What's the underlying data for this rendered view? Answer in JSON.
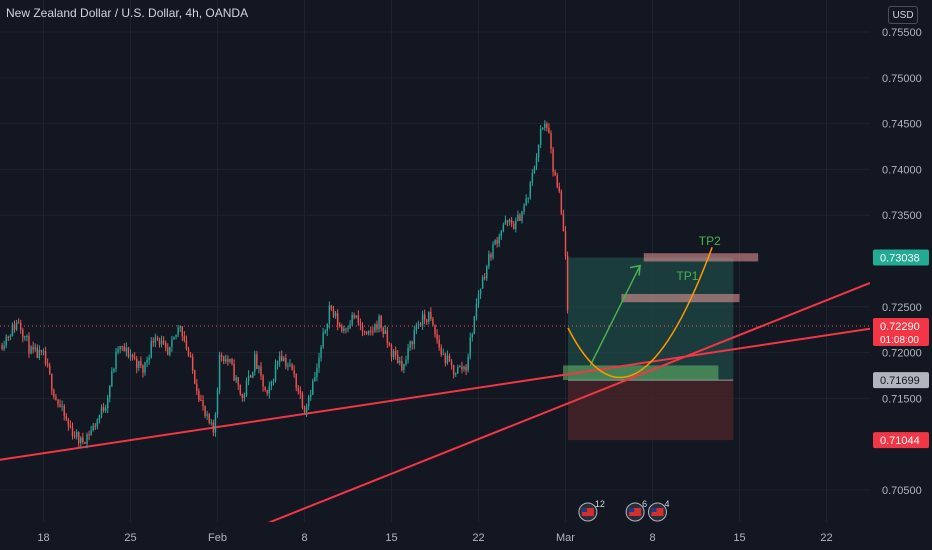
{
  "header": {
    "title": "New Zealand Dollar / U.S. Dollar, 4h, OANDA",
    "currency_button": "USD"
  },
  "chart_data": {
    "type": "candlestick",
    "title": "New Zealand Dollar / U.S. Dollar, 4h, OANDA",
    "price_axis": {
      "ticks": [
        "0.75500",
        "0.75000",
        "0.74500",
        "0.74000",
        "0.73500",
        "0.72500",
        "0.72000",
        "0.71500",
        "0.70500"
      ],
      "tick_values": [
        0.755,
        0.75,
        0.745,
        0.74,
        0.735,
        0.725,
        0.72,
        0.715,
        0.705
      ],
      "ylim": [
        0.7015,
        0.7585
      ]
    },
    "time_axis": {
      "ticks": [
        "18",
        "25",
        "Feb",
        "8",
        "15",
        "22",
        "Mar",
        "8",
        "15",
        "22"
      ],
      "tick_days": [
        0,
        7,
        14,
        21,
        28,
        35,
        42,
        49,
        56,
        63
      ],
      "xlim_days": [
        -3.5,
        66.5
      ]
    },
    "price_labels": [
      {
        "value": 0.73038,
        "text": "0.73038",
        "color": "#22ab94"
      },
      {
        "value": 0.7229,
        "text": "0.72290",
        "sub": "01:08:00",
        "color": "#f23645"
      },
      {
        "value": 0.71699,
        "text": "0.71699",
        "color": "#b2b5be"
      },
      {
        "value": 0.71044,
        "text": "0.71044",
        "color": "#f23645"
      }
    ],
    "current_price": 0.7229,
    "position": {
      "start_day": 42.2,
      "end_day": 55.5,
      "target": 0.73038,
      "entry": 0.71699,
      "stop": 0.71044
    },
    "zones": [
      {
        "label": "TP2",
        "from_day": 48.3,
        "to_day": 57.5,
        "low": 0.72995,
        "high": 0.73085,
        "color": "#ef9a9a"
      },
      {
        "label": "TP1",
        "from_day": 46.5,
        "to_day": 56.0,
        "low": 0.7255,
        "high": 0.7264,
        "color": "#ef9a9a"
      },
      {
        "label": "",
        "from_day": 41.8,
        "to_day": 54.3,
        "low": 0.717,
        "high": 0.7186,
        "color": "#66bb6a"
      }
    ],
    "trendlines": [
      {
        "from": [
          -3.5,
          0.7083
        ],
        "to": [
          66.5,
          0.7226
        ],
        "color": "#f23645"
      },
      {
        "from": [
          14.0,
          0.6992
        ],
        "to": [
          66.5,
          0.7276
        ],
        "color": "#f23645"
      }
    ],
    "arrow": {
      "from": [
        44.0,
        0.7186
      ],
      "to": [
        48.0,
        0.7295
      ],
      "color": "#4caf50"
    },
    "curve": {
      "start": [
        42.2,
        0.7227
      ],
      "control": [
        47.5,
        0.7085
      ],
      "end": [
        53.8,
        0.7315
      ],
      "color": "#ff9800"
    },
    "event_markers": [
      {
        "day": 43.8,
        "count": "12"
      },
      {
        "day": 47.6,
        "count": "6"
      },
      {
        "day": 49.4,
        "count": "4"
      }
    ],
    "ohlc_path": [
      [
        -3.5,
        0.7208
      ],
      [
        -2.0,
        0.7235
      ],
      [
        -1.0,
        0.72
      ],
      [
        0.0,
        0.7195
      ],
      [
        1.0,
        0.715
      ],
      [
        2.0,
        0.712
      ],
      [
        3.0,
        0.7102
      ],
      [
        4.0,
        0.7118
      ],
      [
        5.0,
        0.7145
      ],
      [
        6.0,
        0.7205
      ],
      [
        7.0,
        0.7198
      ],
      [
        8.0,
        0.718
      ],
      [
        9.0,
        0.7222
      ],
      [
        10.0,
        0.7195
      ],
      [
        11.0,
        0.7232
      ],
      [
        12.0,
        0.718
      ],
      [
        13.0,
        0.713
      ],
      [
        13.7,
        0.7112
      ],
      [
        14.2,
        0.72
      ],
      [
        15.0,
        0.7188
      ],
      [
        16.0,
        0.715
      ],
      [
        17.0,
        0.7192
      ],
      [
        18.0,
        0.715
      ],
      [
        19.0,
        0.72
      ],
      [
        20.0,
        0.718
      ],
      [
        21.0,
        0.714
      ],
      [
        22.0,
        0.718
      ],
      [
        23.0,
        0.725
      ],
      [
        24.0,
        0.7225
      ],
      [
        25.0,
        0.724
      ],
      [
        26.0,
        0.7215
      ],
      [
        27.0,
        0.7235
      ],
      [
        28.0,
        0.72
      ],
      [
        29.0,
        0.7185
      ],
      [
        30.0,
        0.723
      ],
      [
        31.0,
        0.724
      ],
      [
        32.0,
        0.72
      ],
      [
        33.0,
        0.718
      ],
      [
        34.0,
        0.7185
      ],
      [
        35.0,
        0.7265
      ],
      [
        36.0,
        0.731
      ],
      [
        37.0,
        0.734
      ],
      [
        38.0,
        0.734
      ],
      [
        39.0,
        0.737
      ],
      [
        40.0,
        0.744
      ],
      [
        40.5,
        0.745
      ],
      [
        41.0,
        0.74
      ],
      [
        41.5,
        0.737
      ],
      [
        42.0,
        0.731
      ],
      [
        42.2,
        0.7229
      ]
    ]
  }
}
